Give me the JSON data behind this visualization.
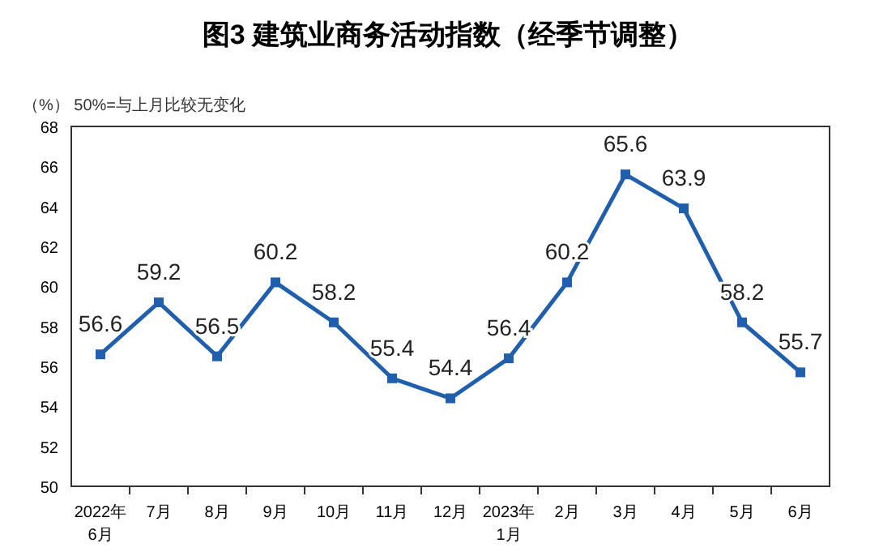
{
  "chart_data": {
    "type": "line",
    "title": "图3  建筑业商务活动指数（经季节调整）",
    "ylabel": "（%）  50%=与上月比较无变化",
    "categories": [
      "2022年\n6月",
      "7月",
      "8月",
      "9月",
      "10月",
      "11月",
      "12月",
      "2023年\n1月",
      "2月",
      "3月",
      "4月",
      "5月",
      "6月"
    ],
    "series": [
      {
        "color": "#1f5fad",
        "values": [
          56.6,
          59.2,
          56.5,
          60.2,
          58.2,
          55.4,
          54.4,
          56.4,
          60.2,
          65.6,
          63.9,
          58.2,
          55.7
        ]
      }
    ],
    "ylim": [
      50,
      68
    ],
    "yticks": [
      50,
      52,
      54,
      56,
      58,
      60,
      62,
      64,
      66,
      68
    ],
    "grid": false,
    "marker": "square",
    "data_labels": true
  }
}
